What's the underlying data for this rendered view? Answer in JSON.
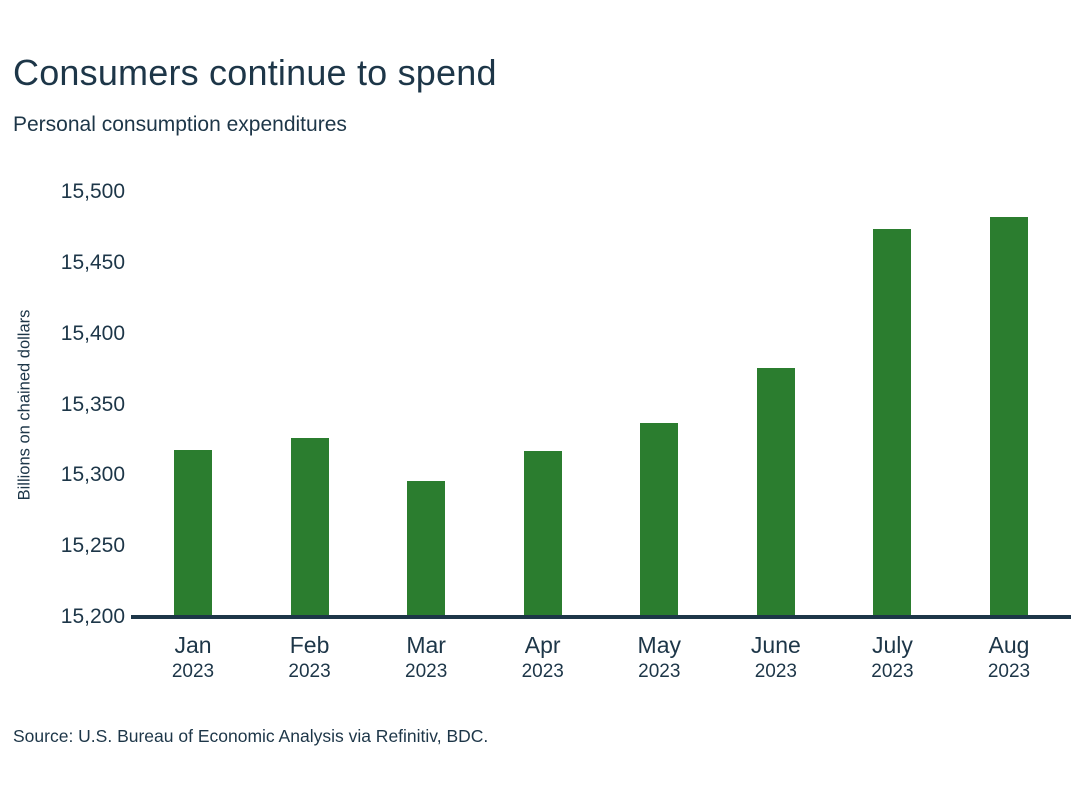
{
  "header": {
    "title": "Consumers continue to spend",
    "subtitle": "Personal consumption expenditures"
  },
  "chart_data": {
    "type": "bar",
    "title": "Consumers continue to spend",
    "subtitle": "Personal consumption expenditures",
    "categories": [
      "Jan",
      "Feb",
      "Mar",
      "Apr",
      "May",
      "June",
      "July",
      "Aug"
    ],
    "category_years": [
      "2023",
      "2023",
      "2023",
      "2023",
      "2023",
      "2023",
      "2023",
      "2023"
    ],
    "values": [
      15318,
      15326,
      15296,
      15317,
      15337,
      15376,
      15474,
      15482
    ],
    "xlabel": "",
    "ylabel": "Billions on chained dollars",
    "ylim": [
      15200,
      15500
    ],
    "ytick_step": 50,
    "yticks": [
      "15,500",
      "15,450",
      "15,400",
      "15,350",
      "15,300",
      "15,250",
      "15,200"
    ],
    "grid": false,
    "legend": false,
    "bar_color": "#2b7d2f",
    "axis_color": "#1d3648",
    "text_color": "#1d3648"
  },
  "footer": {
    "source": "Source: U.S. Bureau of Economic Analysis via Refinitiv, BDC."
  }
}
